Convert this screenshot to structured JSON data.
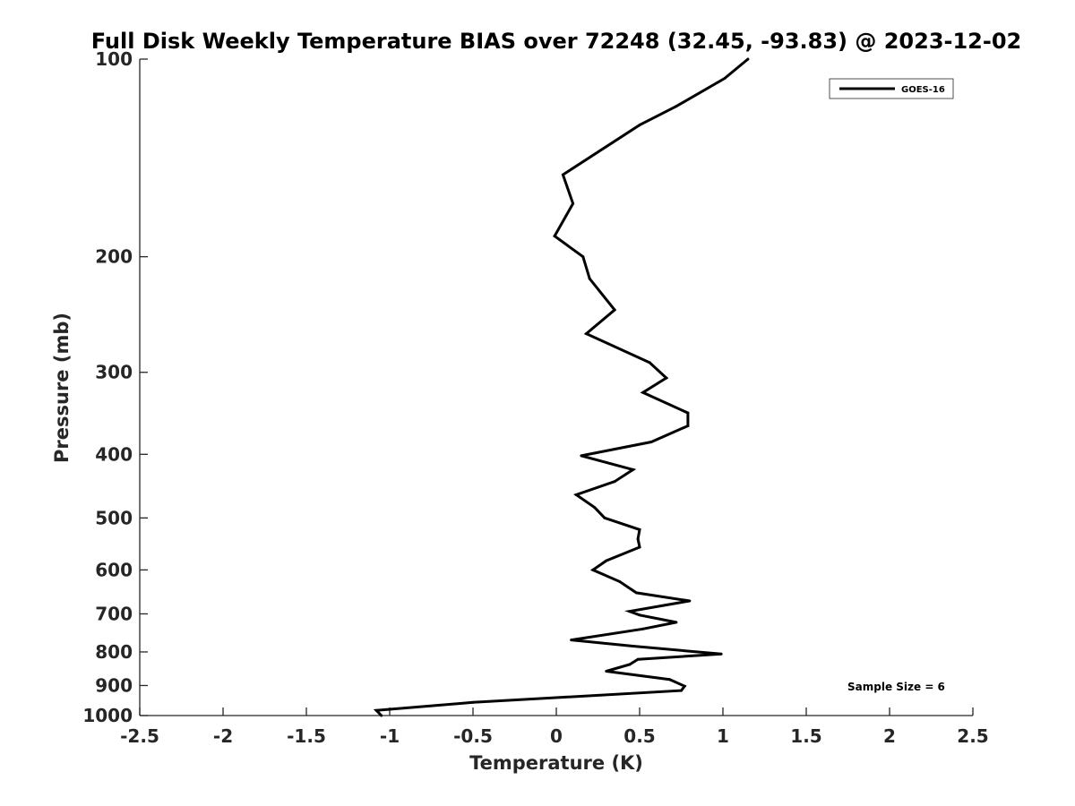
{
  "chart_data": {
    "type": "line",
    "title": "Full Disk Weekly Temperature BIAS over 72248 (32.45, -93.83) @ 2023-12-02",
    "xlabel": "Temperature (K)",
    "ylabel": "Pressure (mb)",
    "xlim": [
      -2.5,
      2.5
    ],
    "ylim": [
      1000,
      100
    ],
    "y_scale": "log",
    "y_reversed": true,
    "x_ticks": [
      -2.5,
      -2,
      -1.5,
      -1,
      -0.5,
      0,
      0.5,
      1,
      1.5,
      2,
      2.5
    ],
    "x_tick_labels": [
      "-2.5",
      "-2",
      "-1.5",
      "-1",
      "-0.5",
      "0",
      "0.5",
      "1",
      "1.5",
      "2",
      "2.5"
    ],
    "y_ticks": [
      100,
      200,
      300,
      400,
      500,
      600,
      700,
      800,
      900,
      1000
    ],
    "y_tick_labels": [
      "100",
      "200",
      "300",
      "400",
      "500",
      "600",
      "700",
      "800",
      "900",
      "1000"
    ],
    "grid": false,
    "legend_position": "top-right",
    "color": "#000000",
    "series": [
      {
        "name": "GOES-16",
        "points": [
          {
            "x": 1.15,
            "y": 100
          },
          {
            "x": 1.01,
            "y": 107
          },
          {
            "x": 0.72,
            "y": 118
          },
          {
            "x": 0.5,
            "y": 126
          },
          {
            "x": 0.04,
            "y": 150
          },
          {
            "x": 0.1,
            "y": 166
          },
          {
            "x": -0.01,
            "y": 186
          },
          {
            "x": 0.16,
            "y": 200
          },
          {
            "x": 0.2,
            "y": 216
          },
          {
            "x": 0.35,
            "y": 241
          },
          {
            "x": 0.18,
            "y": 262
          },
          {
            "x": 0.56,
            "y": 290
          },
          {
            "x": 0.66,
            "y": 306
          },
          {
            "x": 0.52,
            "y": 322
          },
          {
            "x": 0.79,
            "y": 346
          },
          {
            "x": 0.79,
            "y": 362
          },
          {
            "x": 0.57,
            "y": 383
          },
          {
            "x": 0.15,
            "y": 402
          },
          {
            "x": 0.46,
            "y": 422
          },
          {
            "x": 0.35,
            "y": 440
          },
          {
            "x": 0.12,
            "y": 461
          },
          {
            "x": 0.23,
            "y": 482
          },
          {
            "x": 0.29,
            "y": 500
          },
          {
            "x": 0.5,
            "y": 521
          },
          {
            "x": 0.49,
            "y": 538
          },
          {
            "x": 0.5,
            "y": 554
          },
          {
            "x": 0.3,
            "y": 581
          },
          {
            "x": 0.22,
            "y": 600
          },
          {
            "x": 0.38,
            "y": 625
          },
          {
            "x": 0.48,
            "y": 650
          },
          {
            "x": 0.8,
            "y": 669
          },
          {
            "x": 0.44,
            "y": 694
          },
          {
            "x": 0.5,
            "y": 703
          },
          {
            "x": 0.72,
            "y": 721
          },
          {
            "x": 0.52,
            "y": 738
          },
          {
            "x": 0.09,
            "y": 767
          },
          {
            "x": 0.46,
            "y": 784
          },
          {
            "x": 0.99,
            "y": 806
          },
          {
            "x": 0.49,
            "y": 821
          },
          {
            "x": 0.44,
            "y": 836
          },
          {
            "x": 0.3,
            "y": 856
          },
          {
            "x": 0.68,
            "y": 881
          },
          {
            "x": 0.77,
            "y": 902
          },
          {
            "x": 0.75,
            "y": 916
          },
          {
            "x": -0.5,
            "y": 955
          },
          {
            "x": -1.08,
            "y": 982
          },
          {
            "x": -1.05,
            "y": 1000
          }
        ]
      }
    ],
    "annotation": "Sample Size = 6"
  }
}
